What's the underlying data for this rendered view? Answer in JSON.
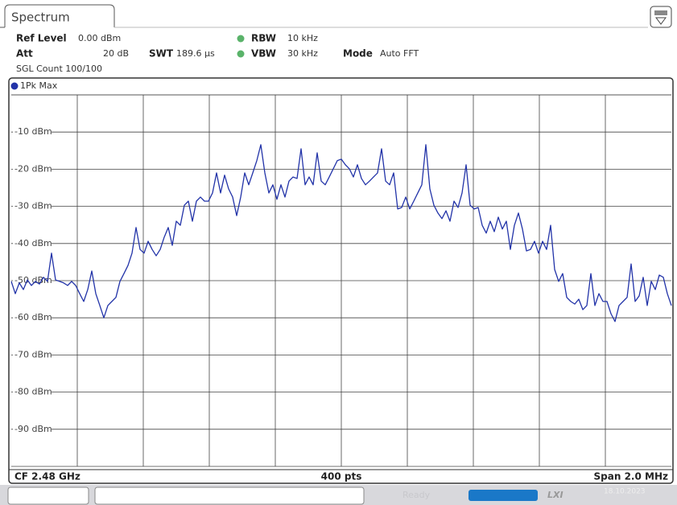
{
  "tab": "Spectrum",
  "header": {
    "ref_level_label": "Ref Level",
    "ref_level": "0.00 dBm",
    "att_label": "Att",
    "att": "20 dB",
    "swt_label": "SWT",
    "swt": "189.6 µs",
    "rbw_label": "RBW",
    "rbw": "10 kHz",
    "vbw_label": "VBW",
    "vbw": "30 kHz",
    "mode_label": "Mode",
    "mode": "Auto FFT",
    "sgl_count": "SGL Count 100/100"
  },
  "footer": {
    "cf": "CF 2.48 GHz",
    "points": "400 pts",
    "span": "Span 2.0 MHz"
  },
  "status": {
    "ready": "Ready",
    "lxi": "LXI",
    "date": "18.10.2023"
  },
  "chart_data": {
    "type": "line",
    "series": [
      {
        "name": "1Pk Max",
        "color": "#2233a8",
        "values": [
          -50.2,
          -53.5,
          -50.6,
          -52.4,
          -49.8,
          -51.3,
          -50.2,
          -50.9,
          -49.1,
          -50.2,
          -42.6,
          -49.8,
          -50.2,
          -50.6,
          -51.3,
          -50.2,
          -51.3,
          -53.5,
          -55.6,
          -52.4,
          -47.4,
          -53.5,
          -56.7,
          -60.0,
          -56.7,
          -55.6,
          -54.5,
          -50.2,
          -48.1,
          -45.9,
          -42.6,
          -35.7,
          -41.6,
          -42.6,
          -39.4,
          -41.6,
          -43.3,
          -41.6,
          -38.3,
          -35.7,
          -40.5,
          -34.0,
          -35.1,
          -29.7,
          -28.6,
          -34.0,
          -28.6,
          -27.5,
          -28.6,
          -28.6,
          -26.4,
          -21.0,
          -26.4,
          -21.6,
          -25.3,
          -27.5,
          -32.5,
          -27.5,
          -21.0,
          -24.2,
          -21.0,
          -17.7,
          -13.4,
          -21.0,
          -26.4,
          -24.2,
          -28.1,
          -24.2,
          -27.5,
          -23.2,
          -22.1,
          -22.5,
          -14.5,
          -24.2,
          -22.1,
          -24.2,
          -15.6,
          -23.2,
          -24.2,
          -22.1,
          -19.9,
          -17.7,
          -17.3,
          -18.8,
          -19.9,
          -22.1,
          -18.8,
          -22.5,
          -24.2,
          -23.2,
          -22.1,
          -21.0,
          -14.5,
          -23.2,
          -24.2,
          -21.0,
          -30.7,
          -30.3,
          -27.5,
          -30.7,
          -28.6,
          -26.4,
          -24.2,
          -13.4,
          -25.3,
          -29.7,
          -31.8,
          -33.3,
          -31.2,
          -34.0,
          -28.6,
          -30.3,
          -26.4,
          -18.8,
          -29.7,
          -30.7,
          -30.3,
          -35.1,
          -37.2,
          -34.0,
          -36.8,
          -32.9,
          -36.1,
          -34.0,
          -41.6,
          -35.1,
          -31.8,
          -36.1,
          -42.0,
          -41.6,
          -39.4,
          -42.6,
          -39.4,
          -41.6,
          -35.1,
          -47.0,
          -50.2,
          -48.1,
          -54.5,
          -55.6,
          -56.3,
          -55.0,
          -57.8,
          -56.7,
          -48.1,
          -56.7,
          -53.5,
          -55.6,
          -55.6,
          -58.9,
          -61.0,
          -56.7,
          -55.6,
          -54.5,
          -45.5,
          -55.6,
          -54.1,
          -49.1,
          -56.7,
          -50.2,
          -52.4,
          -48.5,
          -49.1,
          -53.5,
          -56.7
        ]
      }
    ],
    "ylim": [
      -100,
      0
    ],
    "yticks": [
      {
        "value": -10,
        "label": "-10 dBm"
      },
      {
        "value": -20,
        "label": "-20 dBm"
      },
      {
        "value": -30,
        "label": "-30 dBm"
      },
      {
        "value": -40,
        "label": "-40 dBm"
      },
      {
        "value": -50,
        "label": "-50 dBm"
      },
      {
        "value": -60,
        "label": "-60 dBm"
      },
      {
        "value": -70,
        "label": "-70 dBm"
      },
      {
        "value": -80,
        "label": "-80 dBm"
      },
      {
        "value": -90,
        "label": "-90 dBm"
      }
    ],
    "grid": true
  }
}
